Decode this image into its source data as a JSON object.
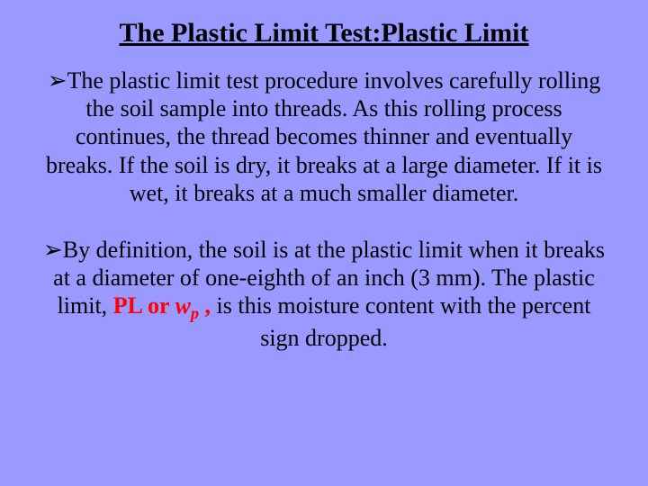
{
  "slide": {
    "title": "The Plastic Limit Test:Plastic Limit",
    "background_color": "#9999ff",
    "text_color": "#000000",
    "emphasis_color": "#ff0000",
    "title_fontsize": 30,
    "body_fontsize": 26,
    "bullets": [
      {
        "marker": "➢",
        "text": "The plastic limit test procedure involves carefully rolling the soil sample into threads. As this rolling process continues, the thread becomes thinner and eventually breaks. If the soil is dry, it breaks at a large diameter. If it is wet, it breaks at a much smaller diameter."
      },
      {
        "marker": "➢",
        "text_before": "By definition, the soil is at the plastic limit when it breaks at a diameter of one-eighth of an inch (3 mm). The plastic limit, ",
        "emphasis_pl": "PL",
        "emphasis_or": " or ",
        "emphasis_w": "w",
        "emphasis_sub": "p",
        "emphasis_after": " ,",
        "text_after": " is this moisture content with the percent sign dropped."
      }
    ]
  }
}
